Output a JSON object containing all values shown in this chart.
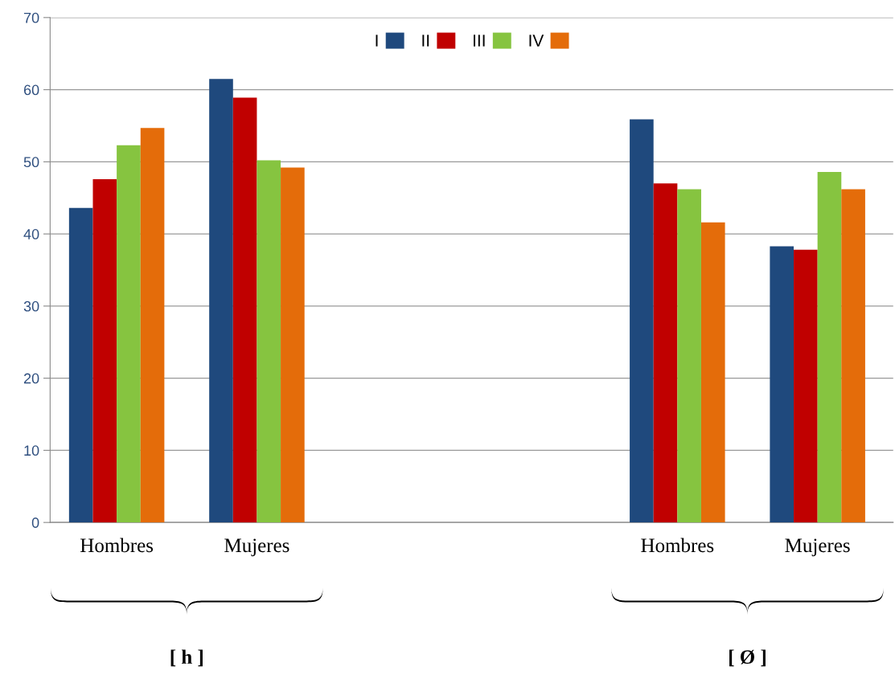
{
  "chart_data": {
    "type": "bar",
    "categories": [
      "Hombres",
      "Mujeres",
      null,
      null,
      "Hombres",
      "Mujeres"
    ],
    "series": [
      {
        "name": "I",
        "color": "#1f497d",
        "values": [
          43.6,
          61.5,
          null,
          null,
          55.9,
          38.3
        ]
      },
      {
        "name": "II",
        "color": "#c00000",
        "values": [
          47.6,
          58.9,
          null,
          null,
          47.0,
          37.8
        ]
      },
      {
        "name": "III",
        "color": "#86c440",
        "values": [
          52.3,
          50.2,
          null,
          null,
          46.2,
          48.6
        ]
      },
      {
        "name": "IV",
        "color": "#e46c0a",
        "values": [
          54.7,
          49.2,
          null,
          null,
          41.6,
          46.2
        ]
      }
    ],
    "ylim": [
      0,
      70
    ],
    "yticks": [
      0,
      10,
      20,
      30,
      40,
      50,
      60,
      70
    ],
    "grid": "y",
    "legend": "top",
    "annotations": [
      "[ h ]",
      "[ Ø ]"
    ]
  }
}
